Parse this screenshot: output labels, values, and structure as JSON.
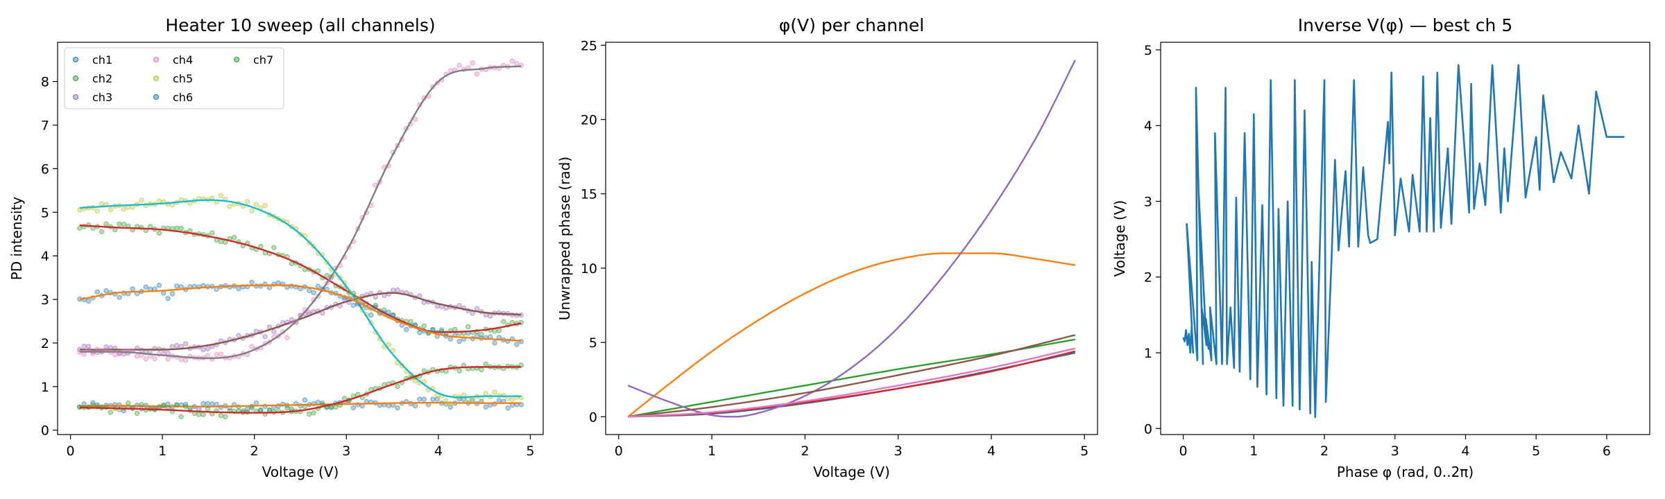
{
  "figure": {
    "panels": [
      {
        "title": "Heater 10 sweep (all channels)",
        "xlabel": "Voltage (V)",
        "ylabel": "PD intensity"
      },
      {
        "title": "φ(V) per channel",
        "xlabel": "Voltage (V)",
        "ylabel": "Unwrapped phase (rad)"
      },
      {
        "title": "Inverse V(φ) — best ch 5",
        "xlabel": "Phase φ (rad, 0..2π)",
        "ylabel": "Voltage (V)"
      }
    ]
  },
  "chart_data": [
    {
      "type": "scatter",
      "title": "Heater 10 sweep (all channels)",
      "xlabel": "Voltage (V)",
      "ylabel": "PD intensity",
      "xlim": [
        -0.14,
        5.14
      ],
      "ylim": [
        -0.1,
        8.9
      ],
      "xticks": [
        0,
        1,
        2,
        3,
        4,
        5
      ],
      "yticks": [
        0,
        1,
        2,
        3,
        4,
        5,
        6,
        7,
        8
      ],
      "grid": false,
      "legend": {
        "position": "top-left",
        "columns": 3
      },
      "series": [
        {
          "name": "ch1",
          "color": "#1f77b4",
          "x": [
            0.1,
            0.5,
            1.0,
            1.5,
            2.0,
            2.5,
            3.0,
            3.5,
            4.0,
            4.5,
            4.9
          ],
          "y": [
            0.55,
            0.56,
            0.55,
            0.54,
            0.56,
            0.58,
            0.6,
            0.62,
            0.63,
            0.62,
            0.62
          ]
        },
        {
          "name": "ch2",
          "color": "#2ca02c",
          "x": [
            0.1,
            0.5,
            1.0,
            1.5,
            2.0,
            2.5,
            3.0,
            3.5,
            4.0,
            4.5,
            4.9
          ],
          "y": [
            4.7,
            4.65,
            4.6,
            4.45,
            4.2,
            3.8,
            3.2,
            2.6,
            2.25,
            2.3,
            2.45
          ]
        },
        {
          "name": "ch3",
          "color": "#9467bd",
          "x": [
            0.1,
            0.5,
            1.0,
            1.5,
            2.0,
            2.5,
            3.0,
            3.5,
            4.0,
            4.5,
            4.9
          ],
          "y": [
            1.85,
            1.85,
            1.85,
            1.95,
            2.2,
            2.55,
            2.95,
            3.15,
            2.9,
            2.7,
            2.65
          ]
        },
        {
          "name": "ch4",
          "color": "#e377c2",
          "x": [
            0.1,
            0.5,
            1.0,
            1.5,
            2.0,
            2.5,
            3.0,
            3.5,
            4.0,
            4.5,
            4.9
          ],
          "y": [
            1.8,
            1.8,
            1.72,
            1.65,
            1.85,
            2.6,
            4.1,
            6.3,
            8.0,
            8.3,
            8.35
          ]
        },
        {
          "name": "ch5",
          "color": "#bcbd22",
          "x": [
            0.1,
            0.5,
            1.0,
            1.5,
            2.0,
            2.5,
            3.0,
            3.5,
            4.0,
            4.5,
            4.9
          ],
          "y": [
            5.1,
            5.15,
            5.2,
            5.28,
            5.1,
            4.5,
            3.3,
            1.75,
            0.85,
            0.78,
            0.78
          ]
        },
        {
          "name": "ch6",
          "color": "#1f77b4",
          "x": [
            0.1,
            0.5,
            1.0,
            1.5,
            2.0,
            2.5,
            3.0,
            3.5,
            4.0,
            4.5,
            4.9
          ],
          "y": [
            3.0,
            3.15,
            3.2,
            3.28,
            3.32,
            3.3,
            3.05,
            2.55,
            2.2,
            2.1,
            2.05
          ]
        },
        {
          "name": "ch7",
          "color": "#2ca02c",
          "x": [
            0.1,
            0.5,
            1.0,
            1.5,
            2.0,
            2.5,
            3.0,
            3.5,
            4.0,
            4.5,
            4.9
          ],
          "y": [
            0.52,
            0.5,
            0.47,
            0.42,
            0.4,
            0.45,
            0.68,
            1.05,
            1.38,
            1.45,
            1.45
          ]
        }
      ]
    },
    {
      "type": "line",
      "title": "φ(V) per channel",
      "xlabel": "Voltage (V)",
      "ylabel": "Unwrapped phase (rad)",
      "xlim": [
        -0.14,
        5.14
      ],
      "ylim": [
        -1.2,
        25.2
      ],
      "xticks": [
        0,
        1,
        2,
        3,
        4,
        5
      ],
      "yticks": [
        0,
        5,
        10,
        15,
        20,
        25
      ],
      "grid": false,
      "series": [
        {
          "color": "#1f77b4",
          "x": [
            0.1,
            1.0,
            2.0,
            3.0,
            4.0,
            4.9
          ],
          "y": [
            0,
            0.2,
            0.9,
            1.9,
            3.1,
            4.3
          ]
        },
        {
          "color": "#ff7f0e",
          "x": [
            0.1,
            0.5,
            1.0,
            1.5,
            2.0,
            2.5,
            3.0,
            3.5,
            4.0,
            4.5,
            4.9
          ],
          "y": [
            0,
            2.0,
            4.4,
            6.5,
            8.3,
            9.7,
            10.6,
            11.0,
            11.0,
            10.6,
            10.2
          ]
        },
        {
          "color": "#2ca02c",
          "x": [
            0.1,
            1.0,
            2.0,
            3.0,
            4.0,
            4.9
          ],
          "y": [
            0,
            1.0,
            2.1,
            3.2,
            4.2,
            5.2
          ]
        },
        {
          "color": "#d62728",
          "x": [
            0.1,
            1.0,
            2.0,
            3.0,
            4.0,
            4.9
          ],
          "y": [
            0,
            0.25,
            0.95,
            1.9,
            3.05,
            4.4
          ]
        },
        {
          "color": "#9467bd",
          "x": [
            0.1,
            0.5,
            1.0,
            1.25,
            1.5,
            2.0,
            2.5,
            3.0,
            3.5,
            4.0,
            4.5,
            4.9
          ],
          "y": [
            2.1,
            1.1,
            0.1,
            0.0,
            0.25,
            1.4,
            3.3,
            6.0,
            9.6,
            13.9,
            19.0,
            24.0
          ]
        },
        {
          "color": "#8c564b",
          "x": [
            0.1,
            1.0,
            2.0,
            3.0,
            4.0,
            4.9
          ],
          "y": [
            0,
            0.65,
            1.6,
            2.8,
            4.1,
            5.5
          ]
        },
        {
          "color": "#e377c2",
          "x": [
            0.1,
            1.0,
            2.0,
            3.0,
            4.0,
            4.9
          ],
          "y": [
            0,
            0.3,
            1.05,
            2.1,
            3.3,
            4.6
          ]
        }
      ]
    },
    {
      "type": "line",
      "title": "Inverse V(φ) — best ch 5",
      "xlabel": "Phase φ (rad, 0..2π)",
      "ylabel": "Voltage (V)",
      "xlim": [
        -0.32,
        6.61
      ],
      "ylim": [
        -0.08,
        5.1
      ],
      "xticks": [
        0,
        1,
        2,
        3,
        4,
        5,
        6
      ],
      "yticks": [
        0,
        1,
        2,
        3,
        4,
        5
      ],
      "grid": false,
      "series": [
        {
          "color": "#1f77b4",
          "x": [
            0.0,
            0.02,
            0.04,
            0.06,
            0.08,
            0.1,
            0.12,
            0.14,
            0.05,
            0.2,
            0.18,
            0.28,
            0.22,
            0.33,
            0.26,
            0.36,
            0.32,
            0.4,
            0.38,
            0.47,
            0.45,
            0.55,
            0.6,
            0.62,
            0.67,
            0.72,
            0.75,
            0.8,
            0.87,
            0.95,
            1.0,
            1.05,
            1.12,
            1.18,
            1.24,
            1.32,
            1.35,
            1.42,
            1.48,
            1.55,
            1.58,
            1.65,
            1.72,
            1.8,
            1.82,
            1.87,
            2.0,
            2.02,
            2.1,
            2.15,
            2.2,
            2.25,
            2.3,
            2.35,
            2.42,
            2.48,
            2.55,
            2.62,
            2.65,
            2.75,
            2.9,
            2.92,
            2.95,
            3.0,
            3.08,
            3.2,
            3.25,
            3.35,
            3.4,
            3.45,
            3.5,
            3.55,
            3.6,
            3.65,
            3.75,
            3.8,
            3.9,
            4.05,
            4.08,
            4.12,
            4.2,
            4.28,
            4.38,
            4.5,
            4.55,
            4.6,
            4.75,
            4.85,
            5.0,
            5.05,
            5.1,
            5.25,
            5.35,
            5.5,
            5.6,
            5.75,
            5.85,
            6.0,
            6.05,
            6.1,
            6.25
          ],
          "y": [
            1.2,
            1.15,
            1.3,
            1.1,
            1.25,
            1.0,
            1.35,
            1.0,
            2.7,
            0.9,
            4.5,
            0.85,
            3.1,
            1.1,
            1.6,
            1.05,
            1.45,
            0.9,
            1.6,
            0.85,
            3.9,
            0.85,
            4.5,
            0.85,
            1.6,
            0.8,
            3.05,
            0.75,
            3.9,
            0.65,
            4.15,
            0.55,
            2.95,
            0.45,
            4.6,
            0.4,
            2.9,
            0.3,
            3.0,
            0.3,
            4.6,
            0.25,
            4.2,
            0.2,
            2.2,
            0.15,
            4.6,
            0.35,
            2.2,
            3.55,
            2.35,
            2.9,
            3.4,
            2.4,
            4.6,
            2.4,
            3.45,
            2.55,
            2.45,
            2.5,
            4.05,
            3.5,
            4.7,
            2.55,
            3.3,
            2.6,
            3.35,
            2.6,
            4.65,
            2.6,
            4.1,
            2.6,
            4.7,
            2.65,
            3.7,
            2.7,
            4.8,
            2.85,
            4.55,
            2.9,
            3.5,
            2.95,
            4.8,
            2.85,
            3.7,
            3.0,
            4.8,
            3.05,
            3.85,
            3.15,
            4.4,
            3.25,
            3.65,
            3.3,
            4.0,
            3.1,
            4.45,
            3.85,
            3.85,
            3.85,
            3.85
          ]
        }
      ]
    }
  ]
}
